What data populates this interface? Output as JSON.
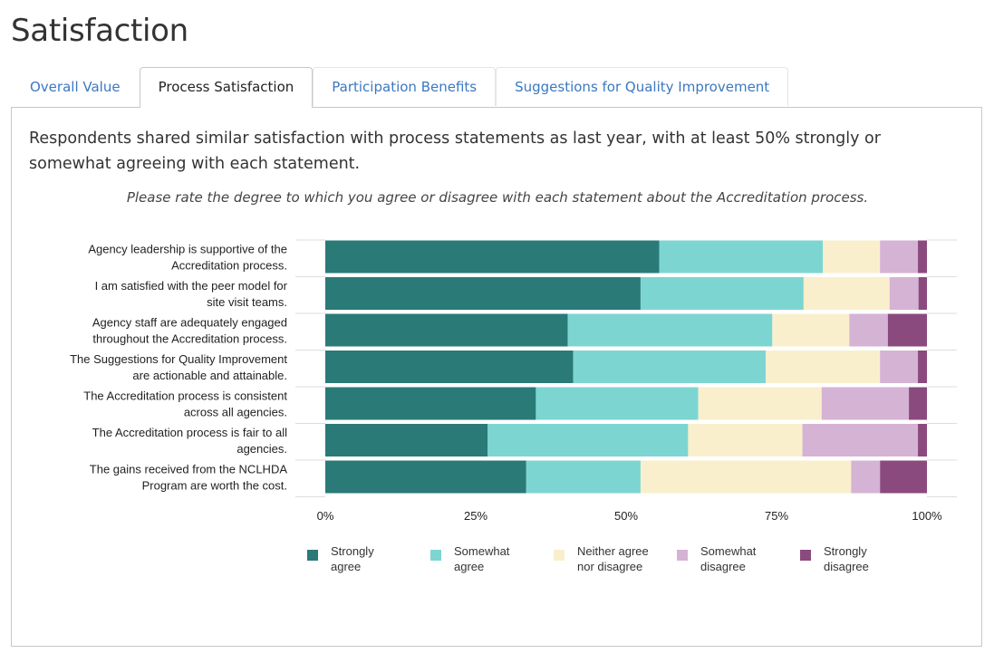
{
  "page": {
    "title": "Satisfaction"
  },
  "tabs": [
    {
      "label": "Overall Value",
      "active": false
    },
    {
      "label": "Process Satisfaction",
      "active": true
    },
    {
      "label": "Participation Benefits",
      "active": false
    },
    {
      "label": "Suggestions for Quality Improvement",
      "active": false
    }
  ],
  "panel": {
    "lead": "Respondents shared similar satisfaction with process statements as last year, with at least 50% strongly or somewhat agreeing with each statement.",
    "question": "Please rate the degree to which you agree or disagree with each statement about the Accreditation process."
  },
  "colors": {
    "strongly_agree": "#2a7a78",
    "somewhat_agree": "#7dd5d2",
    "neither": "#faefcc",
    "somewhat_disagree": "#d5b3d4",
    "strongly_disagree": "#8b4a7e",
    "tab_link": "#3b78c2"
  },
  "chart_data": {
    "type": "bar",
    "orientation": "horizontal-stacked-100",
    "categories": [
      [
        "Agency leadership is supportive of the",
        "Accreditation process."
      ],
      [
        "I am satisfied with the peer model for",
        "site visit teams."
      ],
      [
        "Agency staff are adequately engaged",
        "throughout the Accreditation process."
      ],
      [
        "The Suggestions for Quality Improvement",
        "are actionable and attainable."
      ],
      [
        "The Accreditation process is consistent",
        "across all agencies."
      ],
      [
        "The Accreditation process is fair to all",
        "agencies."
      ],
      [
        "The gains received from the NCLHDA",
        "Program are worth the cost."
      ]
    ],
    "series": [
      {
        "name": "Strongly\nagree",
        "color_key": "strongly_agree",
        "values": [
          55.5,
          52.4,
          40.3,
          41.2,
          35.0,
          27.0,
          33.4
        ]
      },
      {
        "name": "Somewhat\nagree",
        "color_key": "somewhat_agree",
        "values": [
          27.2,
          27.1,
          34.0,
          32.0,
          27.0,
          33.3,
          19.0
        ]
      },
      {
        "name": "Neither agree\nnor disagree",
        "color_key": "neither",
        "values": [
          9.5,
          14.3,
          12.8,
          19.0,
          20.5,
          19.0,
          35.0
        ]
      },
      {
        "name": "Somewhat\ndisagree",
        "color_key": "somewhat_disagree",
        "values": [
          6.3,
          4.8,
          6.4,
          6.3,
          14.5,
          19.2,
          4.8
        ]
      },
      {
        "name": "Strongly\ndisagree",
        "color_key": "strongly_disagree",
        "values": [
          1.5,
          1.4,
          6.5,
          1.5,
          3.0,
          1.5,
          7.8
        ]
      }
    ],
    "xticks": [
      "0%",
      "25%",
      "50%",
      "75%",
      "100%"
    ],
    "xlim": [
      0,
      100
    ],
    "legend": "bottom",
    "grid": true
  }
}
